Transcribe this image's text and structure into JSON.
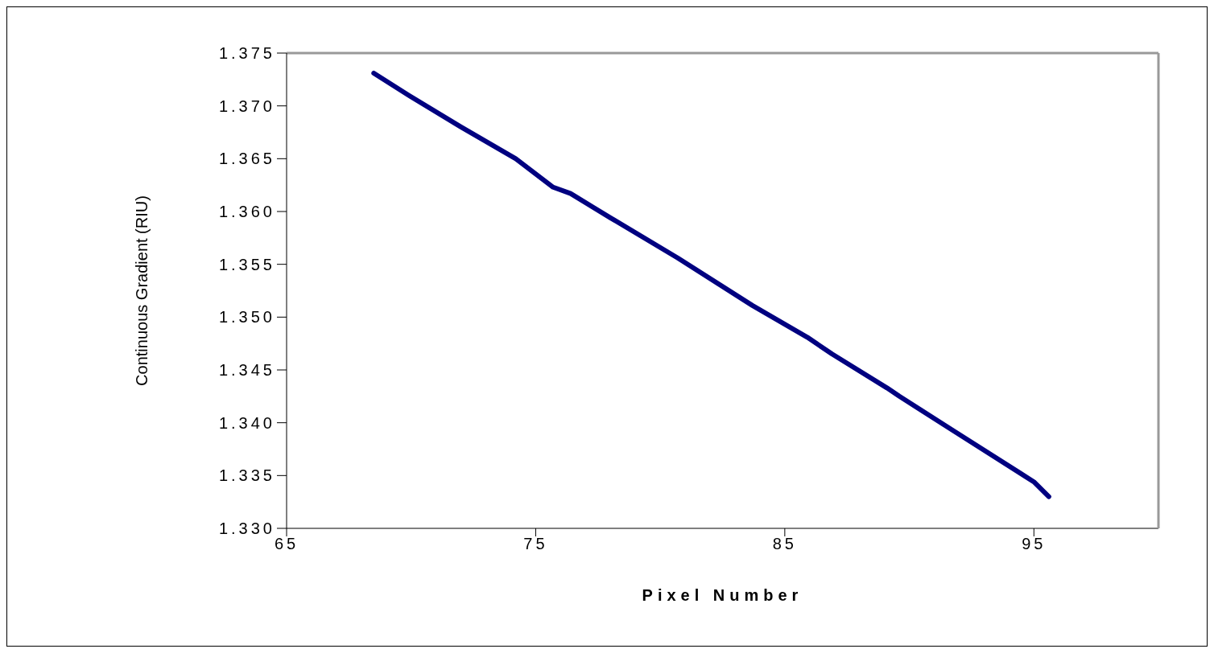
{
  "chart_data": {
    "type": "line",
    "xlabel": "Pixel Number",
    "ylabel": "Continuous Gradient  (RIU)",
    "x": [
      68.5,
      69.9,
      72.0,
      74.2,
      75.7,
      76.4,
      78.0,
      80.7,
      83.7,
      85.9,
      86.9,
      89.1,
      89.6,
      91.8,
      95.0,
      95.6
    ],
    "series": [
      {
        "color": "#000080",
        "values": [
          1.3731,
          1.371,
          1.368,
          1.365,
          1.3623,
          1.3617,
          1.3594,
          1.3556,
          1.3511,
          1.3481,
          1.3465,
          1.3433,
          1.3425,
          1.3392,
          1.3344,
          1.333
        ]
      }
    ],
    "xlim": [
      65,
      100
    ],
    "xticks": [
      65,
      75,
      85,
      95
    ],
    "ylim": [
      1.33,
      1.375
    ],
    "yticks": [
      {
        "value": 1.33,
        "label": "1.330"
      },
      1.335,
      {
        "value": 1.34,
        "label": "1.340"
      },
      1.345,
      {
        "value": 1.35,
        "label": "1.350"
      },
      1.355,
      {
        "value": 1.36,
        "label": "1.360"
      },
      1.365,
      {
        "value": 1.37,
        "label": "1.370"
      },
      1.375
    ],
    "grid": false,
    "legend": false,
    "marker": "none",
    "line_style": "solid"
  }
}
